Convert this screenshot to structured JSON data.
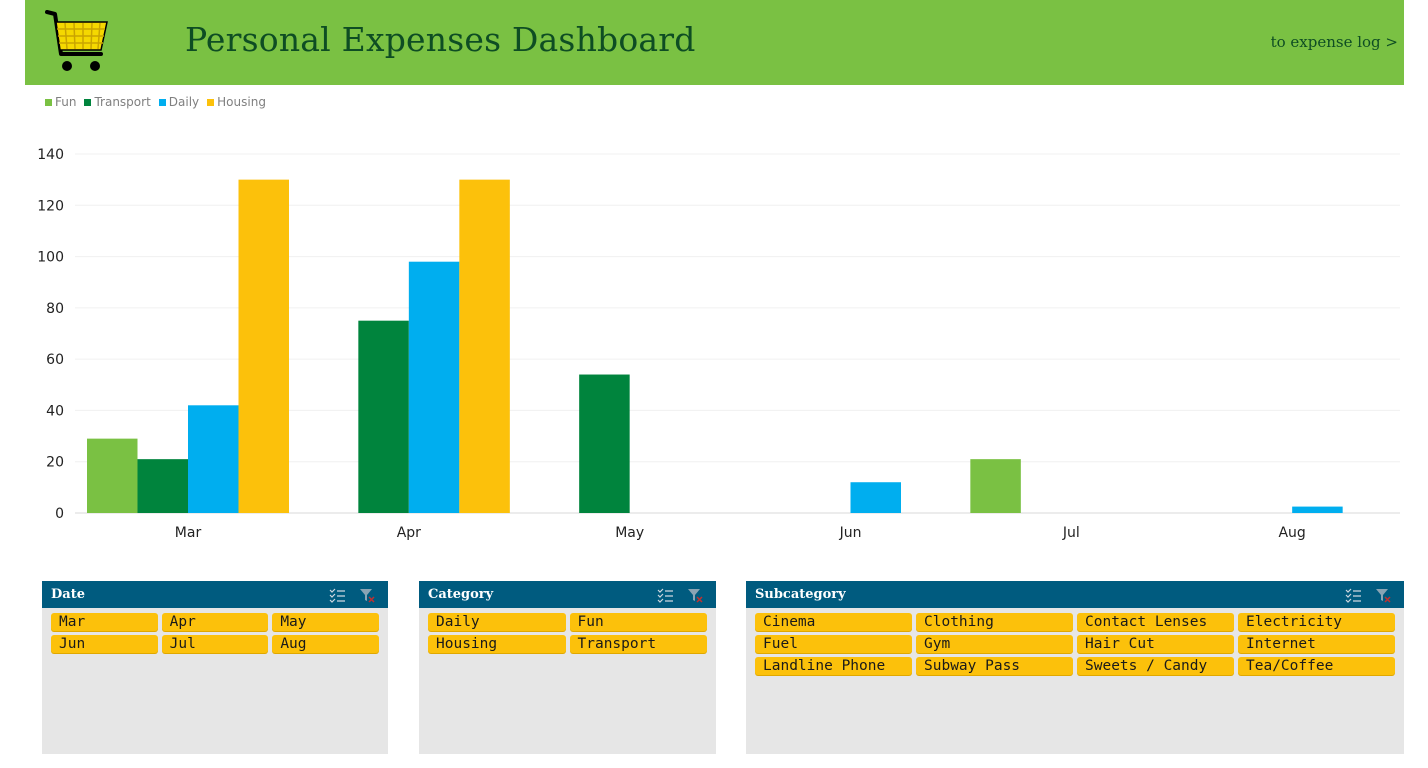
{
  "header": {
    "title": "Personal Expenses Dashboard",
    "link_label": "to expense log >",
    "logo_icon": "shopping-cart-icon",
    "background": "#7ac143",
    "text_color": "#0e4d23"
  },
  "legend": [
    {
      "label": "Fun",
      "color": "#7ac143"
    },
    {
      "label": "Transport",
      "color": "#00843d"
    },
    {
      "label": "Daily",
      "color": "#00aeef"
    },
    {
      "label": "Housing",
      "color": "#fcc10b"
    }
  ],
  "chart_data": {
    "type": "bar",
    "categories": [
      "Mar",
      "Apr",
      "May",
      "Jun",
      "Jul",
      "Aug"
    ],
    "series": [
      {
        "name": "Fun",
        "color": "#7ac143",
        "values": [
          29,
          null,
          null,
          null,
          21,
          null
        ]
      },
      {
        "name": "Transport",
        "color": "#00843d",
        "values": [
          21,
          75,
          54,
          null,
          null,
          null
        ]
      },
      {
        "name": "Daily",
        "color": "#00aeef",
        "values": [
          42,
          98,
          null,
          12,
          null,
          2.5
        ]
      },
      {
        "name": "Housing",
        "color": "#fcc10b",
        "values": [
          130,
          130,
          null,
          null,
          null,
          null
        ]
      }
    ],
    "yticks": [
      "0",
      "20",
      "40",
      "60",
      "80",
      "100",
      "120",
      "140"
    ],
    "ylim": [
      0,
      140
    ],
    "grid": true,
    "legend_position": "top-left"
  },
  "slicers": {
    "date": {
      "title": "Date",
      "items": [
        "Mar",
        "Apr",
        "May",
        "Jun",
        "Jul",
        "Aug"
      ]
    },
    "category": {
      "title": "Category",
      "items": [
        "Daily",
        "Fun",
        "Housing",
        "Transport"
      ]
    },
    "subcategory": {
      "title": "Subcategory",
      "items": [
        "Cinema",
        "Clothing",
        "Contact Lenses",
        "Electricity",
        "Fuel",
        "Gym",
        "Hair Cut",
        "Internet",
        "Landline Phone",
        "Subway Pass",
        "Sweets / Candy",
        "Tea/Coffee"
      ]
    },
    "icons": {
      "multi_select": "multi-select-icon",
      "clear_filter": "clear-filter-icon"
    },
    "header_color": "#005b7f",
    "chip_color": "#fcc10b"
  }
}
